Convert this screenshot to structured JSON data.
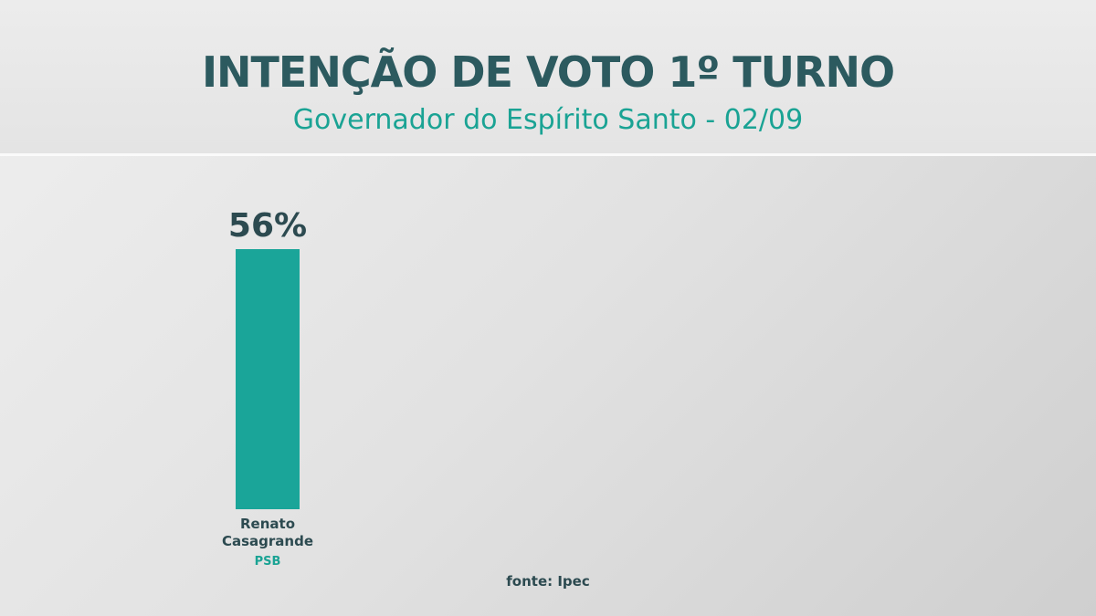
{
  "chart_data": {
    "type": "bar",
    "title": "INTENÇÃO DE VOTO 1º TURNO",
    "subtitle": "Governador do Espírito Santo - 02/09",
    "categories": [
      "Renato Casagrande"
    ],
    "parties": [
      "PSB"
    ],
    "values": [
      56
    ],
    "value_labels": [
      "56%"
    ],
    "color": "#1aa599",
    "source": "fonte: Ipec"
  }
}
